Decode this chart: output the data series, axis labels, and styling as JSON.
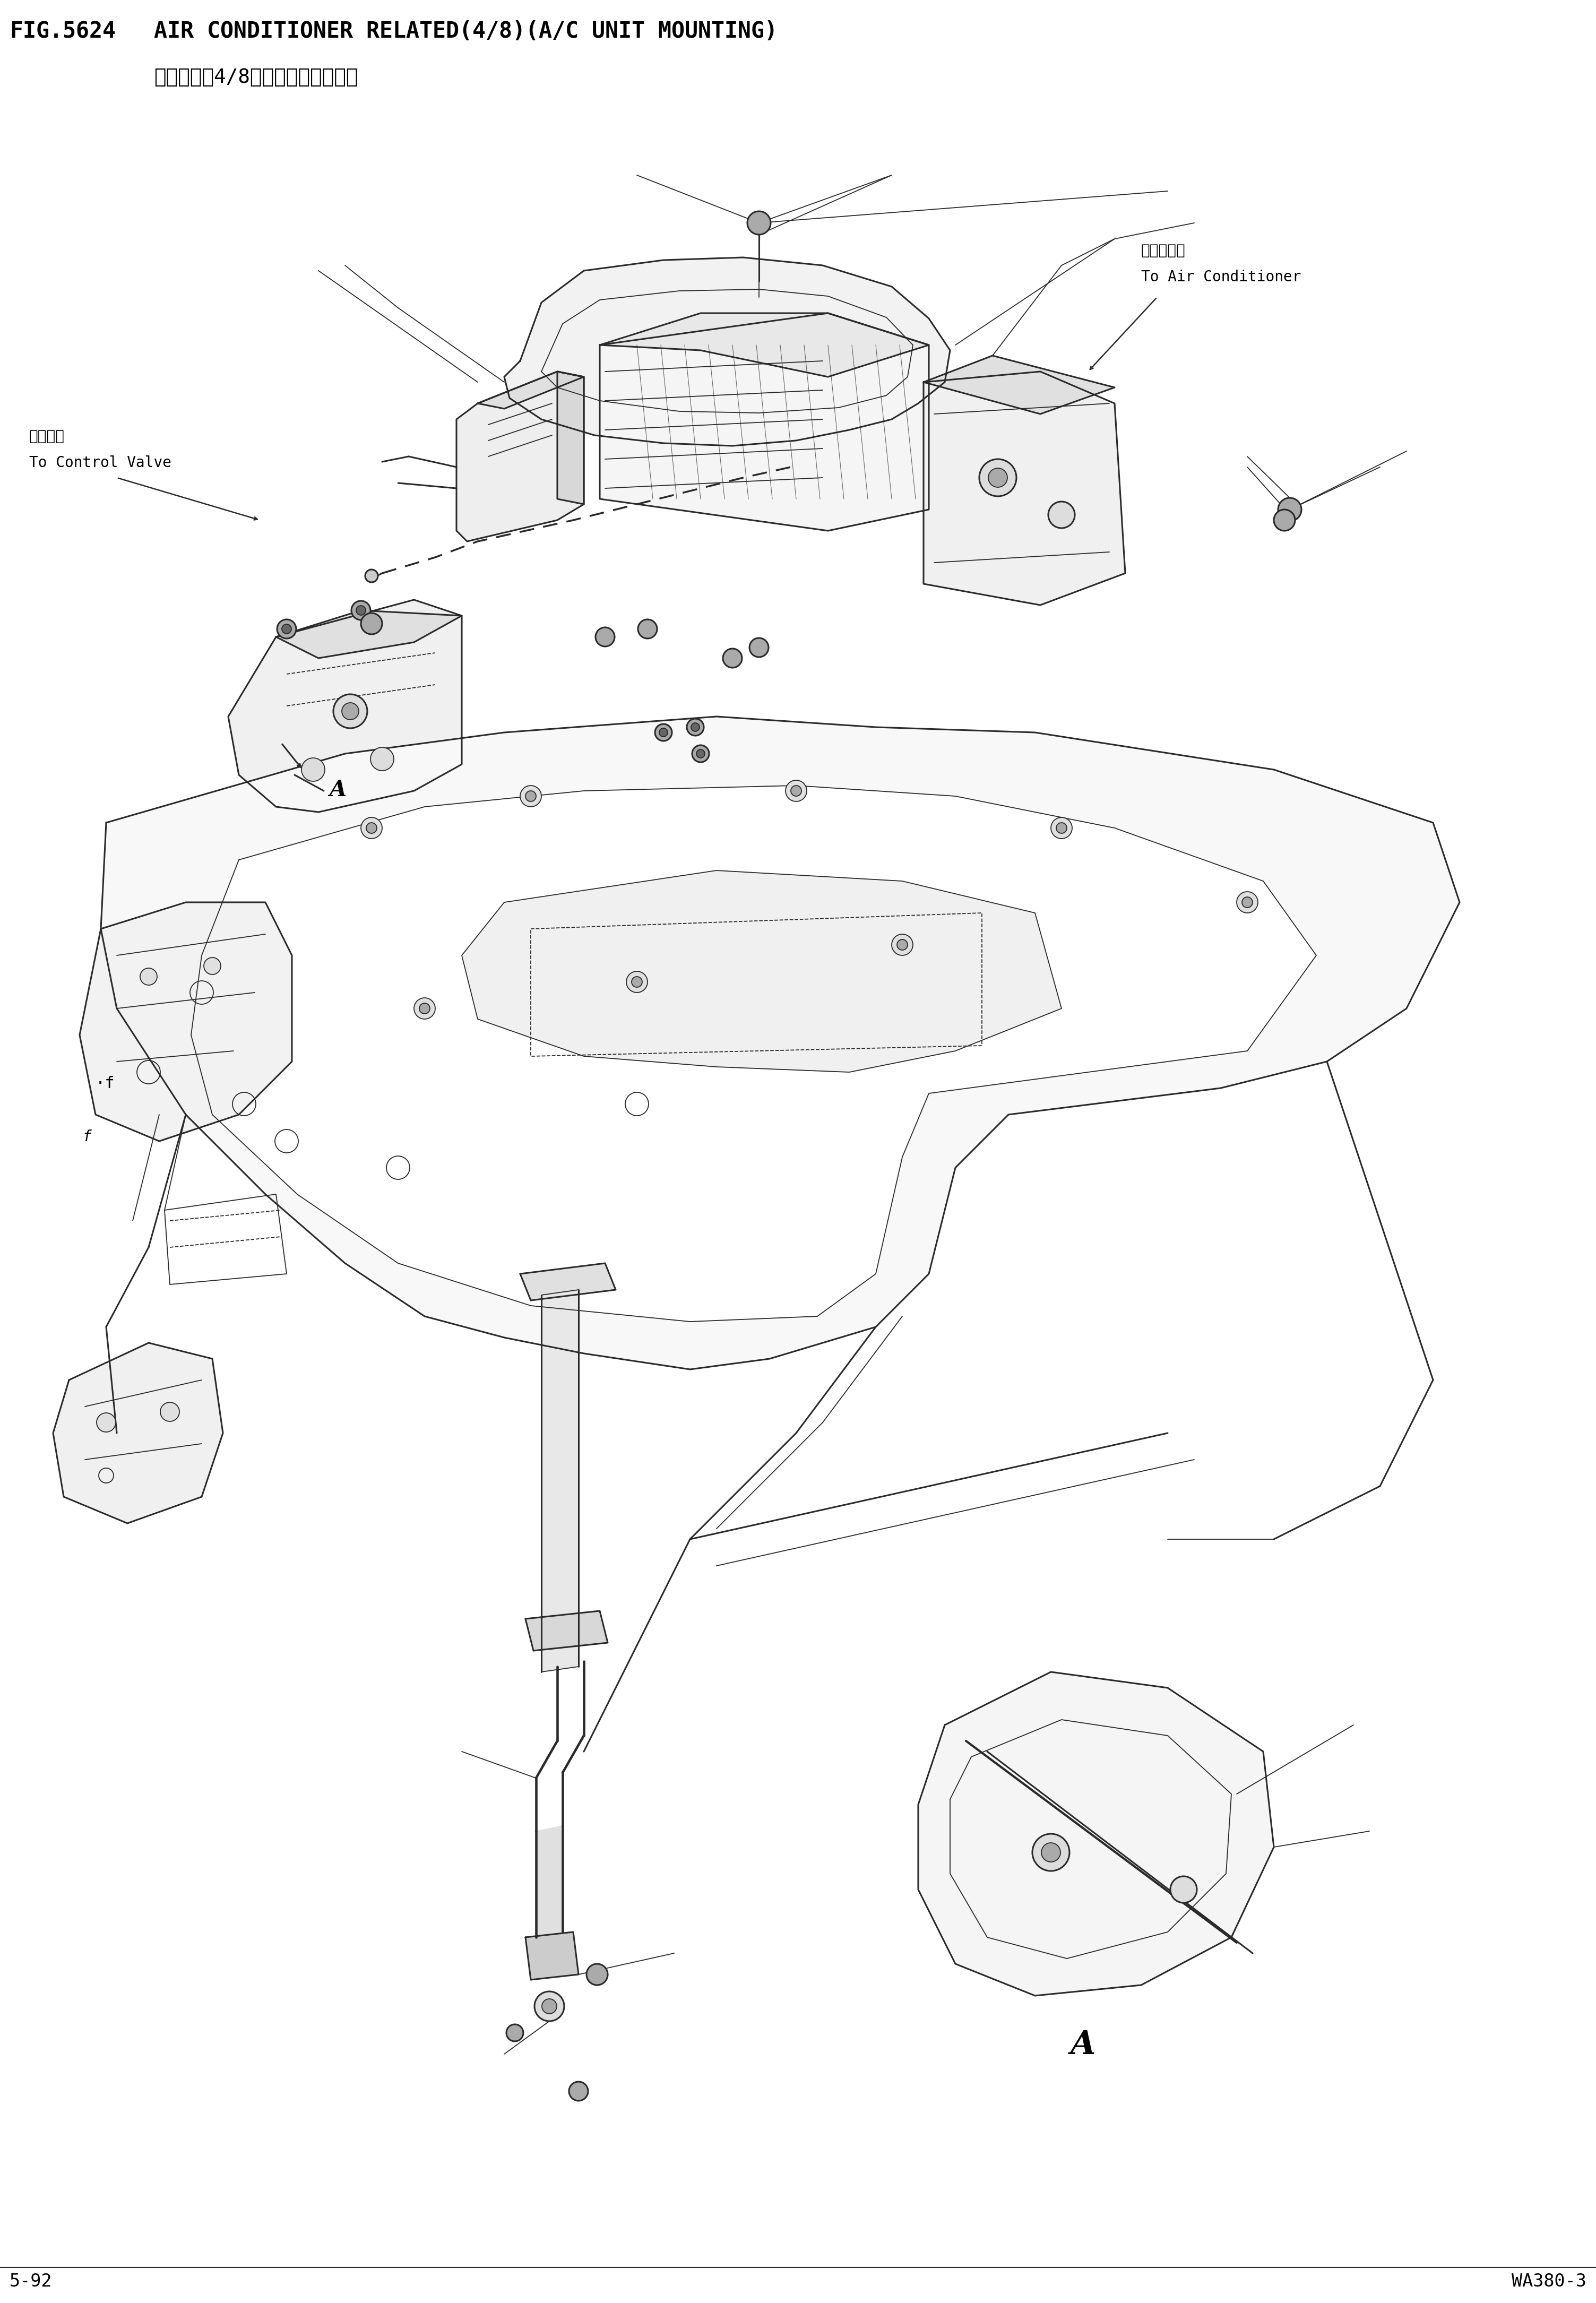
{
  "fig_number": "FIG.5624",
  "title_en": "AIR CONDITIONER RELATED(4/8)(A/C UNIT MOUNTING)",
  "title_cn": "空调组件（4/8）（空调主机安装）",
  "page_left": "5-92",
  "page_right": "WA380-3",
  "ann_ac_cn": "至空调主机",
  "ann_ac_en": "To Air Conditioner",
  "ann_valve_cn": "至控制阀",
  "ann_valve_en": "To Control Valve",
  "label_A": "A",
  "bg_color": "#ffffff",
  "text_color": "#000000",
  "lc": "#2a2a2a",
  "title_fontsize": 30,
  "subtitle_fontsize": 27,
  "annotation_fontsize": 20,
  "footer_fontsize": 24,
  "lw_main": 2.2,
  "lw_thin": 1.3,
  "lw_thick": 3.0
}
